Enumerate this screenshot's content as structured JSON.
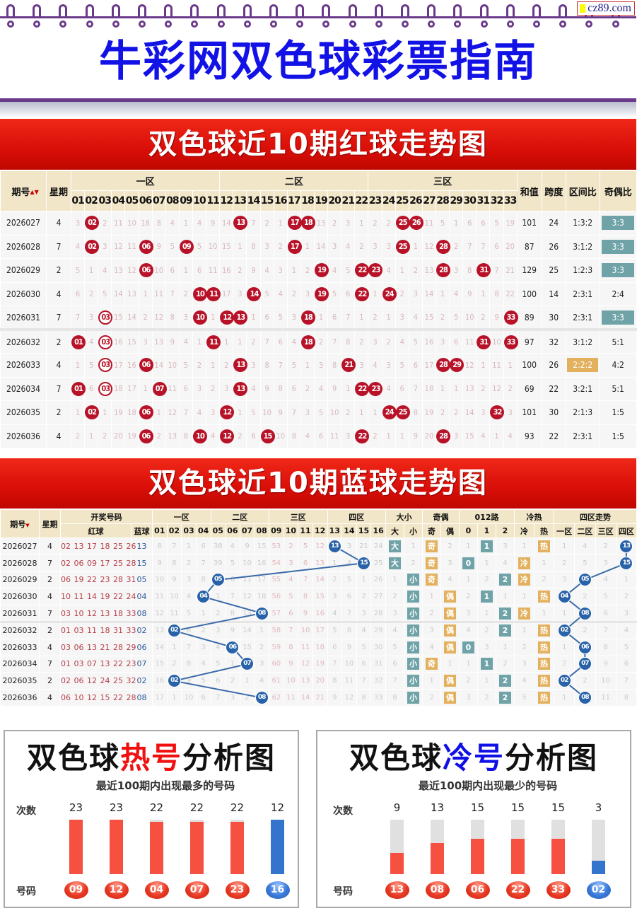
{
  "header": {
    "badge": "cz89.com",
    "title": "牛彩网双色球彩票指南"
  },
  "colors": {
    "red_ball": "#b81228",
    "blue_ball": "#2862a8",
    "teal": "#6fa3a8",
    "orange": "#e3b15e",
    "title_blue": "#1212e6",
    "banner_red": "#e01008"
  },
  "red_trend": {
    "banner": "双色球近10期红球走势图",
    "headers": {
      "issue": "期号",
      "sort_icon": "sort-arrows-icon",
      "weekday": "星期",
      "zones": [
        "一区",
        "二区",
        "三区"
      ],
      "numbers": [
        "01",
        "02",
        "03",
        "04",
        "05",
        "06",
        "07",
        "08",
        "09",
        "10",
        "11",
        "12",
        "13",
        "14",
        "15",
        "16",
        "17",
        "18",
        "19",
        "20",
        "21",
        "22",
        "23",
        "24",
        "25",
        "26",
        "27",
        "28",
        "29",
        "30",
        "31",
        "32",
        "33"
      ],
      "sum": "和值",
      "span": "跨度",
      "zone_ratio": "区间比",
      "odd_even": "奇偶比"
    },
    "rows": [
      {
        "issue": "2026027",
        "weekday": "4",
        "cells": [
          3,
          "02",
          2,
          11,
          10,
          18,
          8,
          4,
          1,
          4,
          9,
          14,
          "13",
          7,
          2,
          1,
          "17",
          "18",
          13,
          2,
          3,
          1,
          2,
          2,
          "25",
          "26",
          11,
          5,
          1,
          6,
          6,
          5,
          19
        ],
        "sum": "101",
        "span": "24",
        "zone_ratio": "1:3:2",
        "odd_even": "3:3",
        "odd_even_hl": true
      },
      {
        "issue": "2026028",
        "weekday": "7",
        "cells": [
          4,
          "02",
          3,
          12,
          11,
          "06",
          9,
          5,
          "09",
          5,
          10,
          15,
          1,
          8,
          3,
          2,
          "17",
          1,
          14,
          3,
          4,
          2,
          3,
          3,
          "25",
          1,
          12,
          "28",
          2,
          7,
          7,
          6,
          20
        ],
        "sum": "87",
        "span": "26",
        "zone_ratio": "3:1:2",
        "odd_even": "3:3",
        "odd_even_hl": true
      },
      {
        "issue": "2026029",
        "weekday": "2",
        "cells": [
          5,
          1,
          4,
          13,
          12,
          "06",
          10,
          6,
          1,
          6,
          11,
          16,
          2,
          9,
          4,
          3,
          1,
          2,
          "19",
          4,
          5,
          "22",
          "23",
          4,
          1,
          2,
          13,
          "28",
          3,
          8,
          "31",
          7,
          21
        ],
        "sum": "129",
        "span": "25",
        "zone_ratio": "1:2:3",
        "odd_even": "3:3",
        "odd_even_hl": true
      },
      {
        "issue": "2026030",
        "weekday": "4",
        "cells": [
          6,
          2,
          5,
          14,
          13,
          1,
          11,
          7,
          2,
          "10",
          "11",
          17,
          3,
          "14",
          5,
          4,
          2,
          3,
          "19",
          5,
          6,
          "22",
          1,
          "24",
          2,
          3,
          14,
          1,
          4,
          9,
          1,
          8,
          22
        ],
        "sum": "100",
        "span": "14",
        "zone_ratio": "2:3:1",
        "odd_even": "2:4"
      },
      {
        "issue": "2026031",
        "weekday": "7",
        "cells": [
          7,
          3,
          "03",
          15,
          14,
          2,
          12,
          8,
          3,
          "10",
          1,
          "12",
          "13",
          1,
          6,
          5,
          3,
          "18",
          1,
          6,
          7,
          1,
          2,
          1,
          3,
          4,
          15,
          2,
          5,
          10,
          2,
          9,
          "33"
        ],
        "rings": [
          "03"
        ],
        "sum": "89",
        "span": "30",
        "zone_ratio": "2:3:1",
        "odd_even": "3:3",
        "odd_even_hl": true
      },
      {
        "issue": "2026032",
        "weekday": "2",
        "cells": [
          "01",
          4,
          "03",
          16,
          15,
          3,
          13,
          9,
          4,
          1,
          "11",
          1,
          1,
          2,
          7,
          6,
          4,
          "18",
          2,
          7,
          8,
          2,
          3,
          2,
          4,
          5,
          16,
          3,
          6,
          11,
          "31",
          10,
          "33"
        ],
        "rings": [
          "03"
        ],
        "sum": "97",
        "span": "32",
        "zone_ratio": "3:1:2",
        "odd_even": "5:1"
      },
      {
        "issue": "2026033",
        "weekday": "4",
        "cells": [
          1,
          5,
          "03",
          17,
          16,
          "06",
          14,
          10,
          5,
          2,
          1,
          2,
          "13",
          3,
          8,
          7,
          5,
          1,
          3,
          8,
          "21",
          3,
          4,
          3,
          5,
          6,
          17,
          "28",
          "29",
          12,
          1,
          11,
          1
        ],
        "rings": [
          "03"
        ],
        "sum": "100",
        "span": "26",
        "zone_ratio": "2:2:2",
        "zone_ratio_hl": true,
        "odd_even": "4:2"
      },
      {
        "issue": "2026034",
        "weekday": "7",
        "cells": [
          "01",
          6,
          "03",
          18,
          17,
          1,
          "07",
          11,
          6,
          3,
          2,
          3,
          "13",
          4,
          9,
          8,
          6,
          2,
          4,
          9,
          1,
          "22",
          "23",
          4,
          6,
          7,
          18,
          1,
          1,
          13,
          2,
          12,
          2
        ],
        "rings": [
          "03"
        ],
        "sum": "69",
        "span": "22",
        "zone_ratio": "3:2:1",
        "odd_even": "5:1"
      },
      {
        "issue": "2026035",
        "weekday": "2",
        "cells": [
          1,
          "02",
          1,
          19,
          18,
          "06",
          1,
          12,
          7,
          4,
          3,
          "12",
          1,
          5,
          10,
          9,
          7,
          3,
          5,
          10,
          2,
          1,
          1,
          "24",
          "25",
          8,
          19,
          2,
          2,
          14,
          3,
          "32",
          3
        ],
        "sum": "101",
        "span": "30",
        "zone_ratio": "2:1:3",
        "odd_even": "1:5"
      },
      {
        "issue": "2026036",
        "weekday": "4",
        "cells": [
          2,
          1,
          2,
          20,
          19,
          "06",
          2,
          13,
          8,
          "10",
          4,
          "12",
          2,
          6,
          "15",
          10,
          8,
          4,
          6,
          11,
          3,
          "22",
          2,
          1,
          1,
          9,
          20,
          "28",
          3,
          15,
          4,
          1,
          4
        ],
        "sum": "93",
        "span": "22",
        "zone_ratio": "2:3:1",
        "odd_even": "1:5"
      }
    ]
  },
  "blue_trend": {
    "banner": "双色球近10期蓝球走势图",
    "headers": {
      "issue": "期号",
      "weekday": "星期",
      "draw": "开奖号码",
      "red": "红球",
      "blue": "蓝球",
      "zones": [
        "一区",
        "二区",
        "三区",
        "四区"
      ],
      "numbers": [
        "01",
        "02",
        "03",
        "04",
        "05",
        "06",
        "07",
        "08",
        "09",
        "10",
        "11",
        "12",
        "13",
        "14",
        "15",
        "16"
      ],
      "size": "大小",
      "size_sub": [
        "大",
        "小"
      ],
      "parity": "奇偶",
      "parity_sub": [
        "奇",
        "偶"
      ],
      "mod3": "012路",
      "mod3_sub": [
        "0",
        "1",
        "2"
      ],
      "temp": "冷热",
      "temp_sub": [
        "冷",
        "热"
      ],
      "quad": "四区走势",
      "quad_sub": [
        "一区",
        "二区",
        "三区",
        "四区"
      ]
    },
    "rows": [
      {
        "issue": "2026027",
        "weekday": "4",
        "red": "02 13 17 18 25 26",
        "blue": "13",
        "zones": [
          8,
          7,
          1,
          6,
          38,
          4,
          9,
          15,
          53,
          2,
          5,
          12,
          "13",
          3,
          21,
          24
        ],
        "size": [
          "大",
          1
        ],
        "parity": [
          "奇",
          2
        ],
        "mod3": [
          1,
          "1",
          3
        ],
        "temp": [
          1,
          "热"
        ],
        "quad": [
          1,
          4,
          2,
          "13"
        ]
      },
      {
        "issue": "2026028",
        "weekday": "7",
        "red": "02 06 09 17 25 28",
        "blue": "15",
        "zones": [
          9,
          8,
          2,
          7,
          39,
          5,
          10,
          16,
          54,
          3,
          6,
          13,
          1,
          4,
          "15",
          25
        ],
        "size": [
          "大",
          2
        ],
        "parity": [
          "奇",
          3
        ],
        "mod3": [
          "0",
          1,
          4
        ],
        "temp": [
          "冷",
          1
        ],
        "quad": [
          2,
          5,
          3,
          "15"
        ]
      },
      {
        "issue": "2026029",
        "weekday": "2",
        "red": "06 19 22 23 28 31",
        "blue": "05",
        "zones": [
          10,
          9,
          3,
          8,
          "05",
          6,
          11,
          17,
          55,
          4,
          7,
          14,
          2,
          5,
          1,
          26
        ],
        "size": [
          1,
          "小"
        ],
        "parity": [
          "奇",
          4
        ],
        "mod3": [
          1,
          2,
          "2"
        ],
        "temp": [
          "冷",
          2
        ],
        "quad": [
          3,
          "05",
          4,
          1
        ]
      },
      {
        "issue": "2026030",
        "weekday": "4",
        "red": "10 11 14 19 22 24",
        "blue": "04",
        "zones": [
          11,
          10,
          4,
          "04",
          1,
          7,
          12,
          18,
          56,
          5,
          8,
          15,
          3,
          6,
          2,
          27
        ],
        "size": [
          2,
          "小"
        ],
        "parity": [
          1,
          "偶"
        ],
        "mod3": [
          2,
          "1",
          1
        ],
        "temp": [
          1,
          "热"
        ],
        "quad": [
          "04",
          2,
          5,
          2
        ]
      },
      {
        "issue": "2026031",
        "weekday": "7",
        "red": "03 10 12 13 18 33",
        "blue": "08",
        "zones": [
          12,
          11,
          5,
          1,
          2,
          8,
          13,
          "08",
          57,
          6,
          9,
          16,
          4,
          7,
          3,
          28
        ],
        "size": [
          3,
          "小"
        ],
        "parity": [
          2,
          "偶"
        ],
        "mod3": [
          3,
          1,
          "2"
        ],
        "temp": [
          "冷",
          1
        ],
        "quad": [
          1,
          "08",
          6,
          3
        ]
      },
      {
        "issue": "2026032",
        "weekday": "2",
        "red": "01 03 11 18 31 33",
        "blue": "02",
        "zones": [
          13,
          "02",
          6,
          2,
          3,
          9,
          14,
          1,
          58,
          7,
          10,
          17,
          5,
          8,
          4,
          29
        ],
        "size": [
          4,
          "小"
        ],
        "parity": [
          3,
          "偶"
        ],
        "mod3": [
          4,
          2,
          "2"
        ],
        "temp": [
          1,
          "热"
        ],
        "quad": [
          "02",
          2,
          7,
          4
        ]
      },
      {
        "issue": "2026033",
        "weekday": "4",
        "red": "03 06 13 21 28 29",
        "blue": "06",
        "zones": [
          14,
          1,
          7,
          3,
          4,
          "06",
          15,
          2,
          59,
          8,
          11,
          18,
          6,
          9,
          5,
          30
        ],
        "size": [
          5,
          "小"
        ],
        "parity": [
          4,
          "偶"
        ],
        "mod3": [
          "0",
          3,
          1
        ],
        "temp": [
          2,
          "热"
        ],
        "quad": [
          1,
          "06",
          8,
          5
        ]
      },
      {
        "issue": "2026034",
        "weekday": "7",
        "red": "01 03 07 13 22 23",
        "blue": "07",
        "zones": [
          15,
          2,
          8,
          4,
          5,
          1,
          "07",
          3,
          60,
          9,
          12,
          19,
          7,
          10,
          6,
          31
        ],
        "size": [
          6,
          "小"
        ],
        "parity": [
          "奇",
          1
        ],
        "mod3": [
          1,
          "1",
          2
        ],
        "temp": [
          3,
          "热"
        ],
        "quad": [
          2,
          "07",
          9,
          6
        ]
      },
      {
        "issue": "2026035",
        "weekday": "2",
        "red": "02 06 12 24 25 32",
        "blue": "02",
        "zones": [
          16,
          "02",
          9,
          5,
          6,
          2,
          1,
          4,
          61,
          10,
          13,
          20,
          8,
          11,
          7,
          32
        ],
        "size": [
          7,
          "小"
        ],
        "parity": [
          1,
          "偶"
        ],
        "mod3": [
          2,
          1,
          "2"
        ],
        "temp": [
          4,
          "热"
        ],
        "quad": [
          "02",
          2,
          10,
          7
        ]
      },
      {
        "issue": "2026036",
        "weekday": "4",
        "red": "06 10 12 15 22 28",
        "blue": "08",
        "zones": [
          17,
          1,
          10,
          6,
          7,
          3,
          2,
          "08",
          62,
          11,
          14,
          21,
          9,
          12,
          8,
          33
        ],
        "size": [
          8,
          "小"
        ],
        "parity": [
          2,
          "偶"
        ],
        "mod3": [
          3,
          2,
          "2"
        ],
        "temp": [
          5,
          "热"
        ],
        "quad": [
          1,
          "08",
          11,
          8
        ]
      }
    ]
  },
  "hot": {
    "title_pre": "双色球",
    "title_hl": "热号",
    "title_post": "分析图",
    "subtitle": "最近100期内出现最多的号码",
    "count_label": "次数",
    "number_label": "号码",
    "chart_data": {
      "type": "bar",
      "categories": [
        "09",
        "12",
        "04",
        "07",
        "23",
        "16"
      ],
      "values": [
        23,
        23,
        22,
        22,
        22,
        12
      ],
      "ball_colors": [
        "red",
        "red",
        "red",
        "red",
        "red",
        "blue"
      ],
      "ylim_red": [
        0,
        23
      ],
      "ylim_blue": [
        0,
        12
      ]
    }
  },
  "cold": {
    "title_pre": "双色球",
    "title_hl": "冷号",
    "title_post": "分析图",
    "subtitle": "最近100期内出现最少的号码",
    "count_label": "次数",
    "number_label": "号码",
    "chart_data": {
      "type": "bar",
      "categories": [
        "13",
        "08",
        "06",
        "22",
        "33",
        "02"
      ],
      "values": [
        9,
        13,
        15,
        15,
        15,
        3
      ],
      "ball_colors": [
        "red",
        "red",
        "red",
        "red",
        "red",
        "blue"
      ],
      "ylim_red": [
        0,
        23
      ],
      "ylim_blue": [
        0,
        12
      ]
    }
  }
}
